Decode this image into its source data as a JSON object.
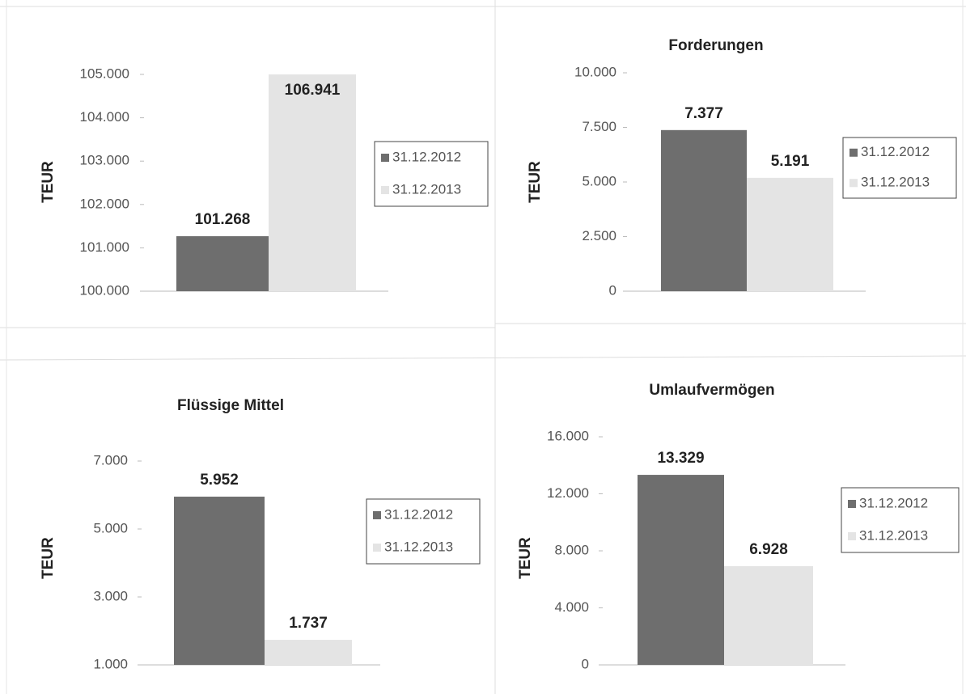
{
  "chart_data": [
    {
      "type": "bar",
      "y_label": "TEUR",
      "categories": [
        null
      ],
      "series": [
        {
          "name": "31.12.2012",
          "color": "#6e6e6e",
          "values": [
            101268
          ],
          "value_labels": [
            "101.268"
          ]
        },
        {
          "name": "31.12.2013",
          "color": "#e4e4e4",
          "values": [
            106941
          ],
          "value_labels": [
            "106.941"
          ]
        }
      ],
      "ylim": [
        100000,
        105000
      ],
      "yticks": [
        {
          "value": 100000,
          "label": "100.000"
        },
        {
          "value": 101000,
          "label": "101.000"
        },
        {
          "value": 102000,
          "label": "102.000"
        },
        {
          "value": 103000,
          "label": "103.000"
        },
        {
          "value": 104000,
          "label": "104.000"
        },
        {
          "value": 105000,
          "label": "105.000"
        }
      ],
      "grid": false
    },
    {
      "type": "bar",
      "title": "Forderungen",
      "y_label": "TEUR",
      "categories": [
        null
      ],
      "series": [
        {
          "name": "31.12.2012",
          "color": "#6e6e6e",
          "values": [
            7377
          ],
          "value_labels": [
            "7.377"
          ]
        },
        {
          "name": "31.12.2013",
          "color": "#e4e4e4",
          "values": [
            5191
          ],
          "value_labels": [
            "5.191"
          ]
        }
      ],
      "ylim": [
        0,
        10000
      ],
      "yticks": [
        0,
        {
          "value": 2500,
          "label": "2.500"
        },
        {
          "value": 5000,
          "label": "5.000"
        },
        {
          "value": 7500,
          "label": "7.500"
        },
        {
          "value": 10000,
          "label": "10.000"
        }
      ],
      "grid": false
    },
    {
      "type": "bar",
      "title": "Flüssige Mittel",
      "y_label": "TEUR",
      "categories": [
        null
      ],
      "series": [
        {
          "name": "31.12.2012",
          "color": "#6e6e6e",
          "values": [
            5952
          ],
          "value_labels": [
            "5.952"
          ]
        },
        {
          "name": "31.12.2013",
          "color": "#e4e4e4",
          "values": [
            1737
          ],
          "value_labels": [
            "1.737"
          ]
        }
      ],
      "ylim": [
        1000,
        7000
      ],
      "yticks": [
        {
          "value": 1000,
          "label": "1.000"
        },
        {
          "value": 3000,
          "label": "3.000"
        },
        {
          "value": 5000,
          "label": "5.000"
        },
        {
          "value": 7000,
          "label": "7.000"
        }
      ],
      "grid": false
    },
    {
      "type": "bar",
      "title": "Umlaufvermögen",
      "y_label": "TEUR",
      "categories": [
        null
      ],
      "series": [
        {
          "name": "31.12.2012",
          "color": "#6e6e6e",
          "values": [
            13329
          ],
          "value_labels": [
            "13.329"
          ]
        },
        {
          "name": "31.12.2013",
          "color": "#e4e4e4",
          "values": [
            6928
          ],
          "value_labels": [
            "6.928"
          ]
        }
      ],
      "ylim": [
        0,
        16000
      ],
      "yticks": [
        0,
        {
          "value": 4000,
          "label": "4.000"
        },
        {
          "value": 8000,
          "label": "8.000"
        },
        {
          "value": 12000,
          "label": "12.000"
        },
        {
          "value": 16000,
          "label": "16.000"
        }
      ],
      "grid": false
    }
  ]
}
